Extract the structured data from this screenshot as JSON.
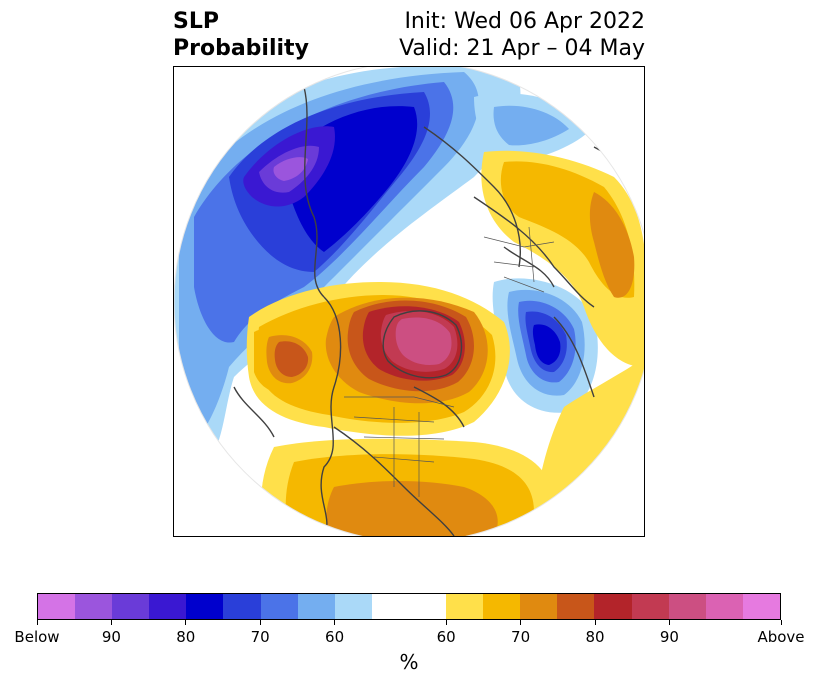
{
  "title": {
    "left_line1": "SLP",
    "left_line2": "Probability",
    "right_line1": "Init: Wed 06 Apr 2022",
    "right_line2": "Valid: 21 Apr – 04 May"
  },
  "map": {
    "projection": "north-polar-stereographic",
    "variable": "SLP probability",
    "features": [
      {
        "name": "below-normal-north-pacific-alaska-siberia",
        "category": "Below",
        "peak_percent": 90
      },
      {
        "name": "below-normal-barents-scandinavia-north",
        "category": "Below",
        "peak_percent": 60
      },
      {
        "name": "below-normal-north-atlantic-azores",
        "category": "Below",
        "peak_percent": 80
      },
      {
        "name": "below-normal-caribbean-gulf",
        "category": "Below",
        "peak_percent": 60
      },
      {
        "name": "above-normal-greenland-canada",
        "category": "Above",
        "peak_percent": 90
      },
      {
        "name": "above-normal-europe-east",
        "category": "Above",
        "peak_percent": 70
      },
      {
        "name": "above-normal-north-africa-middle-east",
        "category": "Above",
        "peak_percent": 65
      },
      {
        "name": "above-normal-east-asia-japan",
        "category": "Above",
        "peak_percent": 75
      }
    ]
  },
  "colorbar": {
    "colors": [
      "#d473e6",
      "#9b55dd",
      "#6a3bd8",
      "#3a18d2",
      "#0000cd",
      "#2a3fd9",
      "#4b73e8",
      "#74aef0",
      "#aad9f8",
      "#ffffff",
      "#ffffff",
      "#ffe04a",
      "#f5b800",
      "#e08a10",
      "#c8561a",
      "#b3242a",
      "#c23a52",
      "#cc4f82",
      "#db62b3",
      "#e67ae0"
    ],
    "tick_labels": [
      "Below",
      "90",
      "80",
      "70",
      "60",
      "60",
      "70",
      "80",
      "90",
      "Above"
    ],
    "unit": "%"
  }
}
